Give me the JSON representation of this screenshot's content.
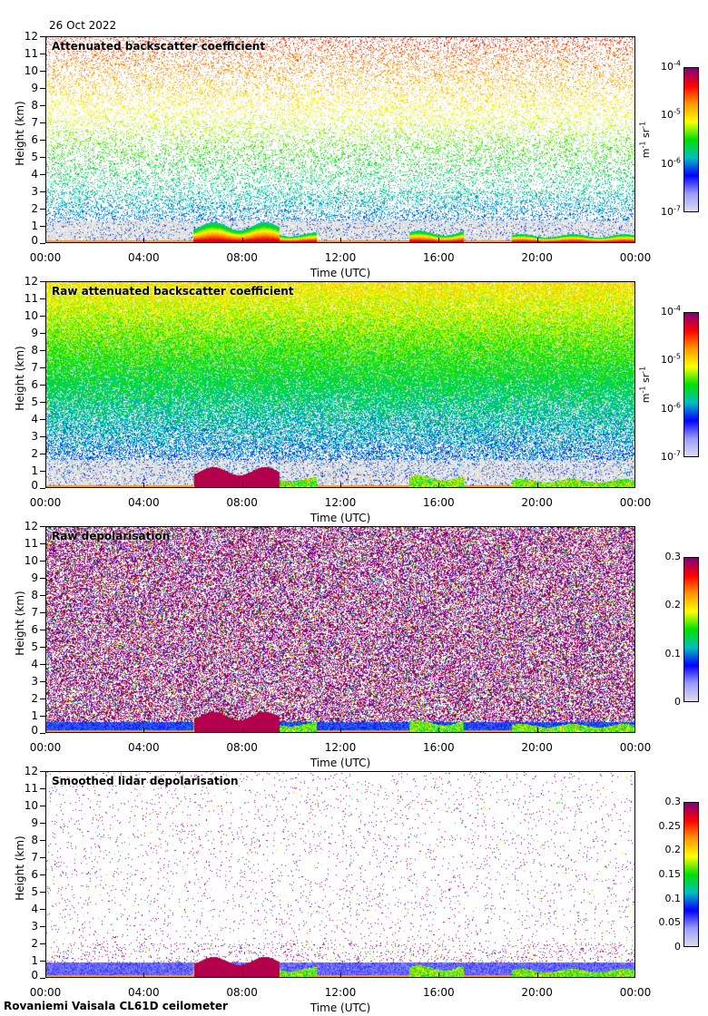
{
  "header": {
    "date": "26 Oct 2022"
  },
  "footer": {
    "instrument": "Rovaniemi Vaisala CL61D ceilometer"
  },
  "colors": {
    "colormap": [
      "#dcdcec",
      "#9a9aff",
      "#0000ff",
      "#00c0c0",
      "#00e000",
      "#ffff00",
      "#ff9900",
      "#ff0000",
      "#800080"
    ]
  },
  "chart_data": [
    {
      "type": "heatmap",
      "title": "Attenuated backscatter coefficient",
      "xlabel": "Time (UTC)",
      "ylabel": "Height (km)",
      "xticks": [
        "00:00",
        "04:00",
        "08:00",
        "12:00",
        "16:00",
        "20:00",
        "00:00"
      ],
      "yticks": [
        "0",
        "1",
        "2",
        "3",
        "4",
        "5",
        "6",
        "7",
        "8",
        "9",
        "10",
        "11",
        "12"
      ],
      "ylim": [
        0,
        12
      ],
      "xlim": [
        0,
        24
      ],
      "colorbar": {
        "ticks": [
          "10-7",
          "10-6",
          "10-5",
          "10-4"
        ],
        "tick_labels": [
          {
            "base": "10",
            "exp": "-7"
          },
          {
            "base": "10",
            "exp": "-6"
          },
          {
            "base": "10",
            "exp": "-5"
          },
          {
            "base": "10",
            "exp": "-4"
          }
        ],
        "unit": "m-1 sr-1",
        "scale": "log"
      },
      "noise": 0.35,
      "style": "sparse"
    },
    {
      "type": "heatmap",
      "title": "Raw attenuated backscatter coefficient",
      "xlabel": "Time (UTC)",
      "ylabel": "Height (km)",
      "xticks": [
        "00:00",
        "04:00",
        "08:00",
        "12:00",
        "16:00",
        "20:00",
        "00:00"
      ],
      "yticks": [
        "0",
        "1",
        "2",
        "3",
        "4",
        "5",
        "6",
        "7",
        "8",
        "9",
        "10",
        "11",
        "12"
      ],
      "ylim": [
        0,
        12
      ],
      "xlim": [
        0,
        24
      ],
      "colorbar": {
        "tick_labels": [
          {
            "base": "10",
            "exp": "-7"
          },
          {
            "base": "10",
            "exp": "-6"
          },
          {
            "base": "10",
            "exp": "-5"
          },
          {
            "base": "10",
            "exp": "-4"
          }
        ],
        "unit": "m-1 sr-1",
        "scale": "log"
      },
      "noise": 1.0,
      "style": "dense"
    },
    {
      "type": "heatmap",
      "title": "Raw depolarisation",
      "xlabel": "Time (UTC)",
      "ylabel": "Height (km)",
      "xticks": [
        "00:00",
        "04:00",
        "08:00",
        "12:00",
        "16:00",
        "20:00",
        "00:00"
      ],
      "yticks": [
        "0",
        "1",
        "2",
        "3",
        "4",
        "5",
        "6",
        "7",
        "8",
        "9",
        "10",
        "11",
        "12"
      ],
      "ylim": [
        0,
        12
      ],
      "xlim": [
        0,
        24
      ],
      "colorbar": {
        "tick_labels": [
          {
            "base": "0"
          },
          {
            "base": "0.1"
          },
          {
            "base": "0.2"
          },
          {
            "base": "0.3"
          }
        ],
        "unit": "",
        "scale": "linear",
        "range": [
          0,
          0.3
        ]
      },
      "noise": 1.0,
      "style": "depol"
    },
    {
      "type": "heatmap",
      "title": "Smoothed lidar depolarisation",
      "xlabel": "Time (UTC)",
      "ylabel": "Height (km)",
      "xticks": [
        "00:00",
        "04:00",
        "08:00",
        "12:00",
        "16:00",
        "20:00",
        "00:00"
      ],
      "yticks": [
        "0",
        "1",
        "2",
        "3",
        "4",
        "5",
        "6",
        "7",
        "8",
        "9",
        "10",
        "11",
        "12"
      ],
      "ylim": [
        0,
        12
      ],
      "xlim": [
        0,
        24
      ],
      "colorbar": {
        "tick_labels": [
          {
            "base": "0"
          },
          {
            "base": "0.05"
          },
          {
            "base": "0.1"
          },
          {
            "base": "0.15"
          },
          {
            "base": "0.2"
          },
          {
            "base": "0.25"
          },
          {
            "base": "0.3"
          }
        ],
        "unit": "",
        "scale": "linear",
        "range": [
          0,
          0.3
        ]
      },
      "noise": 0.06,
      "style": "smooth"
    }
  ],
  "cloud_layers_hours_km": [
    {
      "start": 6.0,
      "end": 9.5,
      "top": 1.2,
      "note": "low cloud morning"
    },
    {
      "start": 9.5,
      "end": 11.0,
      "top": 0.6
    },
    {
      "start": 14.8,
      "end": 17.0,
      "top": 0.7
    },
    {
      "start": 19.0,
      "end": 24.0,
      "top": 0.5
    }
  ]
}
